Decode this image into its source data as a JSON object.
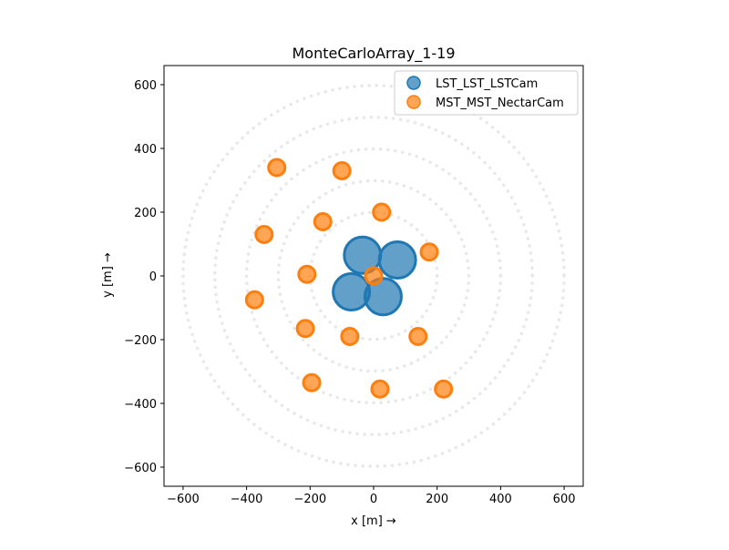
{
  "chart_data": {
    "type": "scatter",
    "title": "MonteCarloArray_1-19",
    "xlabel": "x [m]  →",
    "ylabel": "y [m]  →",
    "xlim": [
      -660,
      660
    ],
    "ylim": [
      -660,
      660
    ],
    "xticks": [
      -600,
      -400,
      -200,
      0,
      200,
      400,
      600
    ],
    "yticks": [
      -600,
      -400,
      -200,
      0,
      200,
      400,
      600
    ],
    "tick_labels": [
      "−600",
      "−400",
      "−200",
      "0",
      "200",
      "400",
      "600"
    ],
    "legend_position": "top-right",
    "guide_circles": {
      "radii": [
        200,
        300,
        400,
        500,
        600
      ],
      "color": "#e8e8e8",
      "style": "dotted"
    },
    "series": [
      {
        "name": "LST_LST_LSTCam",
        "color": "#1f77b4",
        "x": [
          -35,
          75,
          -70,
          30
        ],
        "y": [
          65,
          50,
          -50,
          -65
        ]
      },
      {
        "name": "MST_MST_NectarCam",
        "color": "#ff7f0e",
        "x": [
          -305,
          -100,
          25,
          -160,
          -345,
          175,
          -210,
          0,
          -375,
          -215,
          -75,
          140,
          -195,
          20,
          220
        ],
        "y": [
          340,
          330,
          200,
          170,
          130,
          75,
          5,
          0,
          -75,
          -165,
          -190,
          -190,
          -335,
          -355,
          -355
        ]
      }
    ]
  }
}
